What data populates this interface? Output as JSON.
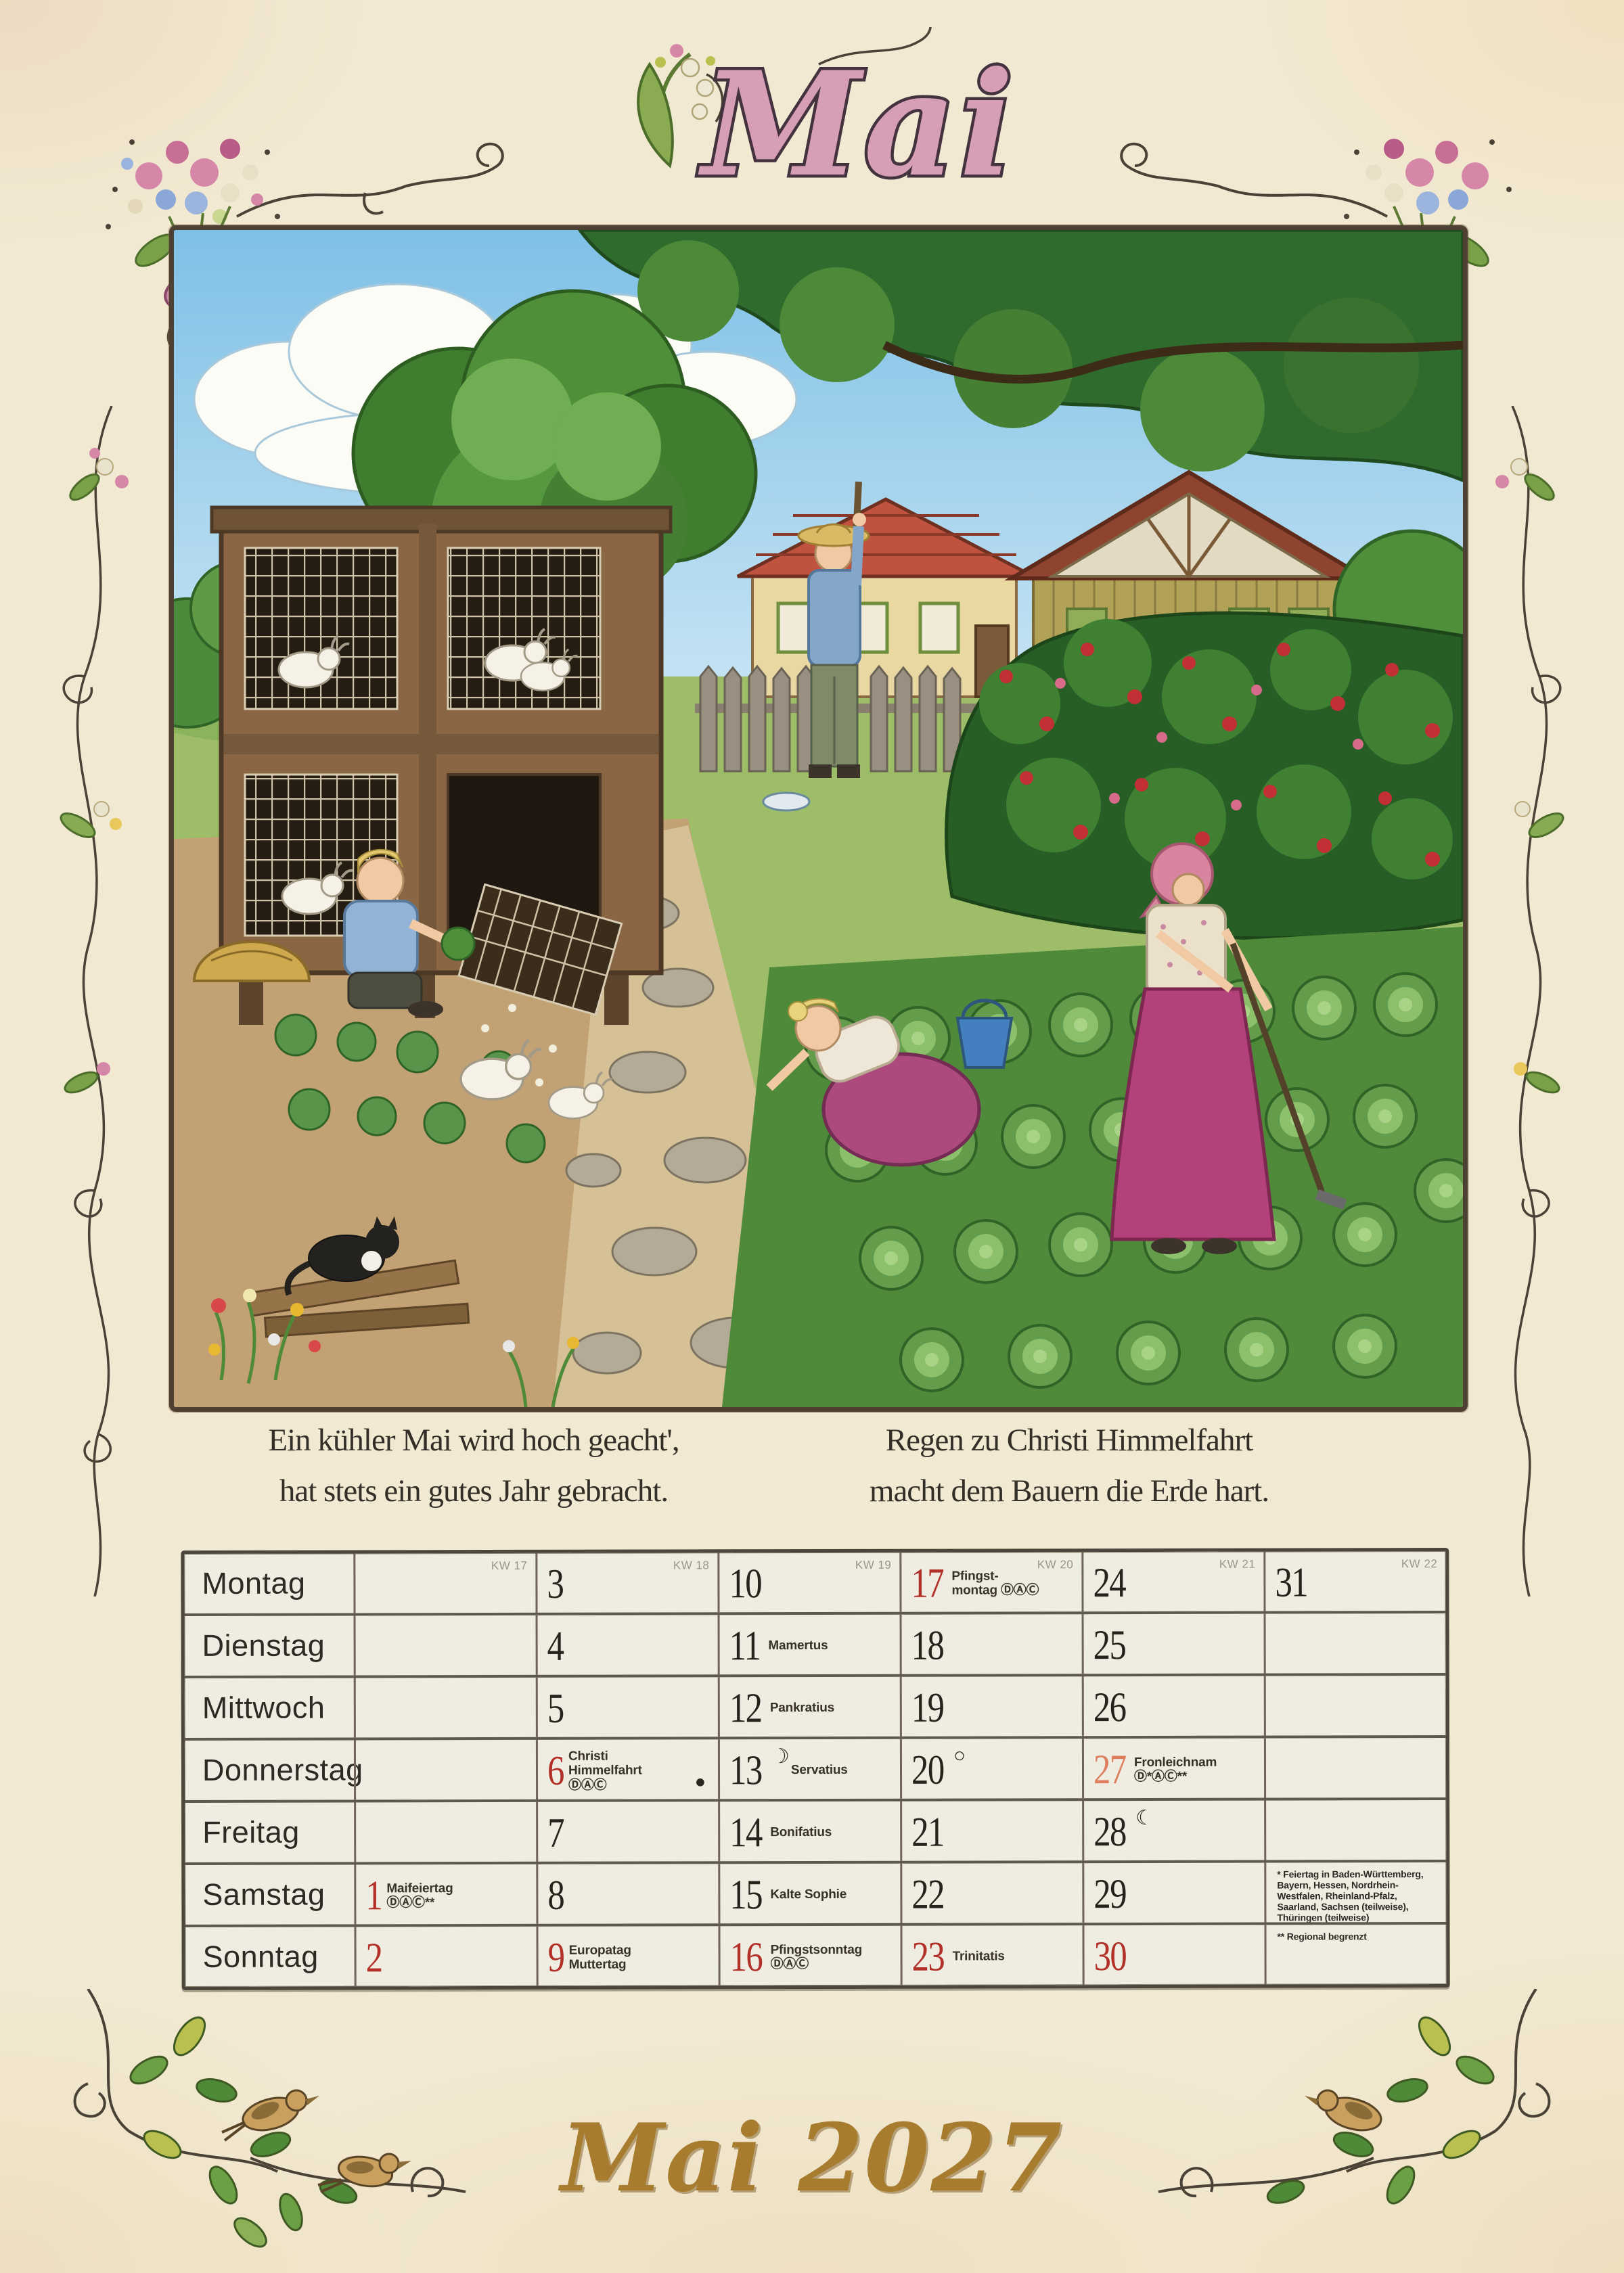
{
  "title": {
    "month_display": "Mai"
  },
  "footer": {
    "text": "Mai 2027"
  },
  "proverbs": {
    "left": [
      "Ein kühler Mai wird hoch geacht',",
      "hat stets ein gutes Jahr gebracht."
    ],
    "right": [
      "Regen zu Christi Himmelfahrt",
      "macht dem Bauern die Erde hart."
    ]
  },
  "illustration": {
    "description": "Watercolor farm garden scene: wooden rabbit hutch with caged rabbits, boy feeding greens, man in straw hat at fence, girl picking in vegetable bed with blue bucket, woman in pink headscarf and magenta apron hoeing, farmhouse and barn with red roofs, big trees, stepping-stone path, cabbage rows, cat on planks"
  },
  "calendar": {
    "rows": [
      {
        "day": "Montag",
        "cells": [
          {
            "kw": "KW 17"
          },
          {
            "num": "3",
            "kw": "KW 18"
          },
          {
            "num": "10",
            "kw": "KW 19"
          },
          {
            "num": "17",
            "style": "red",
            "kw": "KW 20",
            "lab1": "Pfingst-",
            "lab2": "montag ⒹⒶⒸ"
          },
          {
            "num": "24",
            "kw": "KW 21"
          },
          {
            "num": "31",
            "kw": "KW 22"
          }
        ]
      },
      {
        "day": "Dienstag",
        "cells": [
          {},
          {
            "num": "4"
          },
          {
            "num": "11",
            "lab1": "Mamertus"
          },
          {
            "num": "18"
          },
          {
            "num": "25"
          },
          {}
        ]
      },
      {
        "day": "Mittwoch",
        "cells": [
          {},
          {
            "num": "5"
          },
          {
            "num": "12",
            "lab1": "Pankratius"
          },
          {
            "num": "19"
          },
          {
            "num": "26"
          },
          {}
        ]
      },
      {
        "day": "Donnerstag",
        "cells": [
          {},
          {
            "num": "6",
            "style": "red",
            "lab1": "Christi Himmelfahrt",
            "lab2": "ⒹⒶⒸ",
            "moon": "●",
            "moon_right": true
          },
          {
            "num": "13",
            "moon": "☽",
            "lab1": "Servatius"
          },
          {
            "num": "20",
            "moon": "○"
          },
          {
            "num": "27",
            "style": "orange",
            "lab1": "Fronleichnam",
            "lab2": "Ⓓ*ⒶⒸ**"
          },
          {}
        ]
      },
      {
        "day": "Freitag",
        "cells": [
          {},
          {
            "num": "7"
          },
          {
            "num": "14",
            "lab1": "Bonifatius"
          },
          {
            "num": "21"
          },
          {
            "num": "28",
            "moon": "☾"
          },
          {}
        ]
      },
      {
        "day": "Samstag",
        "cells": [
          {
            "num": "1",
            "style": "red",
            "lab1": "Maifeiertag ⒹⒶⒸ**"
          },
          {
            "num": "8"
          },
          {
            "num": "15",
            "lab1": "Kalte Sophie"
          },
          {
            "num": "22"
          },
          {
            "num": "29"
          },
          {
            "note": "* Feiertag in Baden-Württemberg, Bayern, Hessen, Nordrhein-Westfalen, Rheinland-Pfalz, Saarland, Sachsen (teilweise), Thüringen (teilweise)"
          }
        ]
      },
      {
        "day": "Sonntag",
        "cells": [
          {
            "num": "2",
            "style": "red"
          },
          {
            "num": "9",
            "style": "red",
            "lab1": "Europatag",
            "lab2": "Muttertag"
          },
          {
            "num": "16",
            "style": "red",
            "lab1": "Pfingstsonntag",
            "lab2": "ⒹⒶⒸ"
          },
          {
            "num": "23",
            "style": "red",
            "lab1": "Trinitatis"
          },
          {
            "num": "30",
            "style": "red"
          },
          {
            "note": "** Regional begrenzt"
          }
        ]
      }
    ]
  },
  "colors": {
    "parchment": "#f2e9d2",
    "holiday_red": "#b13028",
    "holiday_orange": "#dd7f5c",
    "title_pink": "#d79fb6",
    "footer_gold": "#a87c2e",
    "table_cell": "#efece1",
    "kw_gray": "#9b948a"
  }
}
